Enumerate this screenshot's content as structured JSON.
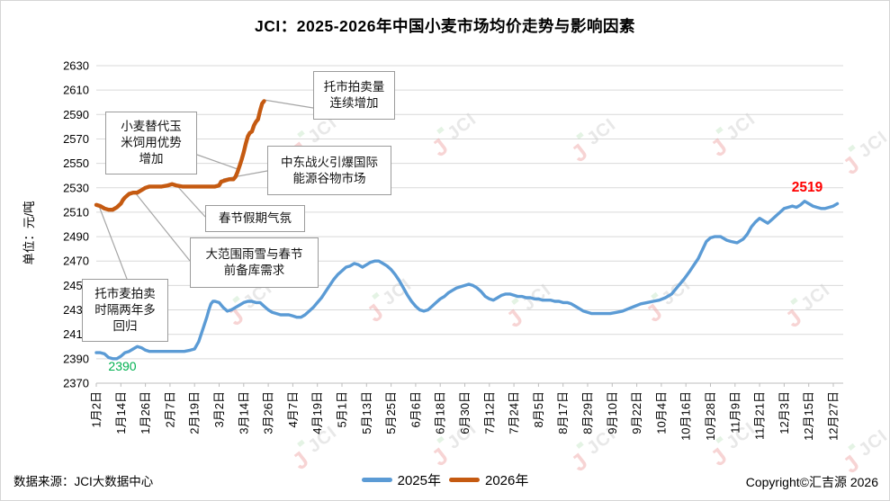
{
  "title": "JCI：2025-2026年中国小麦市场均价走势与影响因素",
  "watermark_text": "JCI",
  "footer": {
    "source": "数据来源：JCI大数据中心",
    "copyright": "Copyright©汇吉源 2026"
  },
  "annotations": {
    "tuopaimai": {
      "text": "托市拍卖量\n连续增加"
    },
    "xiaomai": {
      "text": "小麦替代玉\n米饲用优势\n增加"
    },
    "zhongdong": {
      "text": "中东战火引爆国际\n能源谷物市场"
    },
    "chunjie": {
      "text": "春节假期气氛"
    },
    "dafanwei": {
      "text": "大范围雨雪与春节\n前备库需求"
    },
    "tuoshimai": {
      "text": "托市麦拍卖\n时隔两年多\n回归"
    }
  },
  "chart_data": {
    "type": "line",
    "title": "JCI：2025-2026年中国小麦市场均价走势与影响因素",
    "xlabel": "",
    "ylabel": "单位：元/吨",
    "ylim": [
      2370,
      2630
    ],
    "y_tick_step": 20,
    "grid": true,
    "legend_position": "bottom",
    "x_tick_interval_days": 12,
    "x_tick_labels": [
      "1月2日",
      "1月14日",
      "1月26日",
      "2月7日",
      "2月19日",
      "3月2日",
      "3月14日",
      "3月26日",
      "4月7日",
      "4月19日",
      "5月1日",
      "5月13日",
      "5月25日",
      "6月6日",
      "6月18日",
      "6月30日",
      "7月12日",
      "7月24日",
      "8月5日",
      "8月17日",
      "8月29日",
      "9月10日",
      "9月22日",
      "10月4日",
      "10月16日",
      "10月28日",
      "11月9日",
      "11月21日",
      "12月3日",
      "12月15日",
      "12月27日"
    ],
    "legend": [
      {
        "label": "2025年",
        "color": "#5B9BD5"
      },
      {
        "label": "2026年",
        "color": "#C55A11"
      }
    ],
    "point_labels": {
      "min_label": {
        "text": "2390",
        "color": "#00B050"
      },
      "last_label": {
        "text": "2519",
        "color": "#FF0000"
      }
    },
    "series": [
      {
        "name": "2025年",
        "color": "#5B9BD5",
        "points": [
          [
            0,
            2395
          ],
          [
            2,
            2395
          ],
          [
            4,
            2394
          ],
          [
            6,
            2391
          ],
          [
            8,
            2390
          ],
          [
            10,
            2390
          ],
          [
            12,
            2392
          ],
          [
            14,
            2395
          ],
          [
            16,
            2396
          ],
          [
            18,
            2398
          ],
          [
            20,
            2400
          ],
          [
            22,
            2399
          ],
          [
            24,
            2397
          ],
          [
            26,
            2396
          ],
          [
            28,
            2396
          ],
          [
            31,
            2396
          ],
          [
            34,
            2396
          ],
          [
            37,
            2396
          ],
          [
            40,
            2396
          ],
          [
            43,
            2396
          ],
          [
            46,
            2397
          ],
          [
            48,
            2398
          ],
          [
            50,
            2404
          ],
          [
            52,
            2414
          ],
          [
            54,
            2424
          ],
          [
            55,
            2430
          ],
          [
            56,
            2435
          ],
          [
            57,
            2437
          ],
          [
            58,
            2437
          ],
          [
            60,
            2436
          ],
          [
            62,
            2432
          ],
          [
            64,
            2429
          ],
          [
            66,
            2430
          ],
          [
            68,
            2432
          ],
          [
            70,
            2434
          ],
          [
            72,
            2436
          ],
          [
            74,
            2437
          ],
          [
            76,
            2437
          ],
          [
            78,
            2436
          ],
          [
            80,
            2436
          ],
          [
            82,
            2433
          ],
          [
            84,
            2430
          ],
          [
            86,
            2428
          ],
          [
            88,
            2427
          ],
          [
            90,
            2426
          ],
          [
            92,
            2426
          ],
          [
            94,
            2426
          ],
          [
            96,
            2425
          ],
          [
            98,
            2424
          ],
          [
            100,
            2424
          ],
          [
            102,
            2426
          ],
          [
            104,
            2429
          ],
          [
            106,
            2432
          ],
          [
            108,
            2436
          ],
          [
            110,
            2440
          ],
          [
            112,
            2445
          ],
          [
            114,
            2450
          ],
          [
            116,
            2455
          ],
          [
            118,
            2459
          ],
          [
            120,
            2462
          ],
          [
            122,
            2465
          ],
          [
            124,
            2466
          ],
          [
            126,
            2468
          ],
          [
            128,
            2467
          ],
          [
            130,
            2465
          ],
          [
            132,
            2467
          ],
          [
            134,
            2469
          ],
          [
            136,
            2470
          ],
          [
            138,
            2470
          ],
          [
            140,
            2468
          ],
          [
            142,
            2466
          ],
          [
            144,
            2463
          ],
          [
            146,
            2459
          ],
          [
            148,
            2454
          ],
          [
            150,
            2448
          ],
          [
            152,
            2442
          ],
          [
            154,
            2437
          ],
          [
            156,
            2433
          ],
          [
            158,
            2430
          ],
          [
            160,
            2429
          ],
          [
            162,
            2430
          ],
          [
            164,
            2433
          ],
          [
            166,
            2436
          ],
          [
            168,
            2439
          ],
          [
            170,
            2441
          ],
          [
            172,
            2444
          ],
          [
            174,
            2446
          ],
          [
            176,
            2448
          ],
          [
            178,
            2449
          ],
          [
            180,
            2450
          ],
          [
            182,
            2451
          ],
          [
            184,
            2450
          ],
          [
            186,
            2448
          ],
          [
            188,
            2445
          ],
          [
            190,
            2441
          ],
          [
            192,
            2439
          ],
          [
            194,
            2438
          ],
          [
            196,
            2440
          ],
          [
            198,
            2442
          ],
          [
            200,
            2443
          ],
          [
            202,
            2443
          ],
          [
            204,
            2442
          ],
          [
            206,
            2441
          ],
          [
            208,
            2441
          ],
          [
            210,
            2440
          ],
          [
            212,
            2440
          ],
          [
            214,
            2439
          ],
          [
            216,
            2439
          ],
          [
            218,
            2438
          ],
          [
            220,
            2438
          ],
          [
            222,
            2438
          ],
          [
            224,
            2437
          ],
          [
            226,
            2437
          ],
          [
            228,
            2436
          ],
          [
            230,
            2436
          ],
          [
            232,
            2435
          ],
          [
            234,
            2433
          ],
          [
            236,
            2431
          ],
          [
            238,
            2429
          ],
          [
            240,
            2428
          ],
          [
            242,
            2427
          ],
          [
            245,
            2427
          ],
          [
            248,
            2427
          ],
          [
            251,
            2427
          ],
          [
            254,
            2428
          ],
          [
            257,
            2429
          ],
          [
            260,
            2431
          ],
          [
            263,
            2433
          ],
          [
            266,
            2435
          ],
          [
            269,
            2436
          ],
          [
            272,
            2437
          ],
          [
            275,
            2438
          ],
          [
            278,
            2440
          ],
          [
            281,
            2443
          ],
          [
            284,
            2449
          ],
          [
            287,
            2455
          ],
          [
            290,
            2462
          ],
          [
            292,
            2467
          ],
          [
            294,
            2472
          ],
          [
            296,
            2479
          ],
          [
            298,
            2486
          ],
          [
            300,
            2489
          ],
          [
            302,
            2490
          ],
          [
            305,
            2490
          ],
          [
            308,
            2487
          ],
          [
            310,
            2486
          ],
          [
            313,
            2485
          ],
          [
            316,
            2488
          ],
          [
            318,
            2492
          ],
          [
            320,
            2498
          ],
          [
            322,
            2502
          ],
          [
            324,
            2505
          ],
          [
            326,
            2503
          ],
          [
            328,
            2501
          ],
          [
            330,
            2504
          ],
          [
            332,
            2507
          ],
          [
            334,
            2510
          ],
          [
            336,
            2513
          ],
          [
            338,
            2514
          ],
          [
            340,
            2515
          ],
          [
            342,
            2514
          ],
          [
            344,
            2516
          ],
          [
            346,
            2519
          ],
          [
            348,
            2517
          ],
          [
            350,
            2515
          ],
          [
            352,
            2514
          ],
          [
            354,
            2513
          ],
          [
            356,
            2513
          ],
          [
            358,
            2514
          ],
          [
            360,
            2515
          ],
          [
            362,
            2517
          ]
        ]
      },
      {
        "name": "2026年",
        "color": "#C55A11",
        "points": [
          [
            0,
            2516
          ],
          [
            2,
            2515
          ],
          [
            4,
            2513
          ],
          [
            6,
            2512
          ],
          [
            8,
            2512
          ],
          [
            10,
            2514
          ],
          [
            12,
            2517
          ],
          [
            13,
            2520
          ],
          [
            14,
            2522
          ],
          [
            16,
            2525
          ],
          [
            18,
            2526
          ],
          [
            20,
            2526
          ],
          [
            22,
            2528
          ],
          [
            24,
            2530
          ],
          [
            26,
            2531
          ],
          [
            29,
            2531
          ],
          [
            32,
            2531
          ],
          [
            35,
            2532
          ],
          [
            37,
            2533
          ],
          [
            39,
            2532
          ],
          [
            42,
            2531
          ],
          [
            46,
            2531
          ],
          [
            50,
            2531
          ],
          [
            54,
            2531
          ],
          [
            58,
            2531
          ],
          [
            60,
            2532
          ],
          [
            61,
            2535
          ],
          [
            63,
            2536
          ],
          [
            65,
            2537
          ],
          [
            67,
            2537
          ],
          [
            68,
            2539
          ],
          [
            69,
            2543
          ],
          [
            70,
            2548
          ],
          [
            71,
            2553
          ],
          [
            72,
            2559
          ],
          [
            73,
            2566
          ],
          [
            74,
            2572
          ],
          [
            75,
            2575
          ],
          [
            76,
            2576
          ],
          [
            77,
            2581
          ],
          [
            78,
            2584
          ],
          [
            79,
            2586
          ],
          [
            80,
            2593
          ],
          [
            81,
            2599
          ],
          [
            82,
            2601
          ]
        ]
      }
    ]
  }
}
